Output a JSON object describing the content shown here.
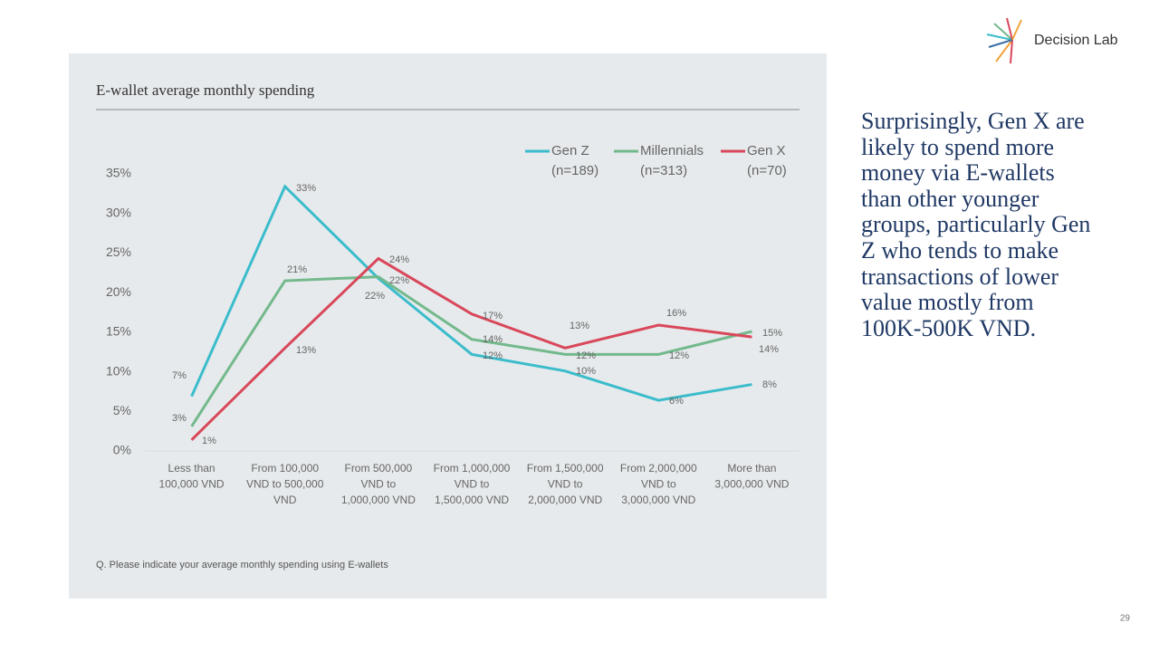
{
  "logo": "Decision Lab",
  "page_number": "29",
  "commentary": "Surprisingly, Gen X are likely to spend more money via E-wallets than other younger groups, particularly Gen Z who tends to make transactions of lower value mostly from 100K-500K VND.",
  "chart_data": {
    "type": "line",
    "title": "E-wallet average monthly spending",
    "note": "Q. Please indicate your average monthly spending using E-wallets",
    "categories": [
      [
        "Less than",
        "100,000 VND"
      ],
      [
        "From 100,000",
        "VND to 500,000",
        "VND"
      ],
      [
        "From 500,000",
        "VND to",
        "1,000,000 VND"
      ],
      [
        "From 1,000,000",
        "VND to",
        "1,500,000 VND"
      ],
      [
        "From 1,500,000",
        "VND to",
        "2,000,000 VND"
      ],
      [
        "From 2,000,000",
        "VND to",
        "3,000,000 VND"
      ],
      [
        "More than",
        "3,000,000 VND"
      ]
    ],
    "ylim": [
      0,
      35
    ],
    "yticks": [
      {
        "value": 0,
        "label": "0%"
      },
      {
        "value": 5,
        "label": "5%"
      },
      {
        "value": 10,
        "label": "10%"
      },
      {
        "value": 15,
        "label": "15%"
      },
      {
        "value": 20,
        "label": "20%"
      },
      {
        "value": 25,
        "label": "25%"
      },
      {
        "value": 30,
        "label": "30%"
      },
      {
        "value": 35,
        "label": "35%"
      }
    ],
    "legend": "top-right",
    "series": [
      {
        "name": "Gen Z",
        "n": "(n=189)",
        "color": "#3bbccb",
        "values": [
          6.9,
          33.4,
          21.8,
          12.2,
          10.1,
          6.4,
          8.4
        ],
        "value_labels": [
          "7%",
          "33%",
          "22%",
          "12%",
          "10%",
          "6%",
          "8%"
        ]
      },
      {
        "name": "Millennials",
        "n": "(n=313)",
        "color": "#73b98c",
        "values": [
          3.1,
          21.5,
          22,
          14.1,
          12.2,
          12.2,
          15.1
        ],
        "value_labels": [
          "3%",
          "21%",
          "22%",
          "14%",
          "12%",
          "12%",
          "15%"
        ]
      },
      {
        "name": "Gen X",
        "n": "(n=70)",
        "color": "#d9475a",
        "values": [
          1.4,
          13,
          24.3,
          17.3,
          13,
          15.9,
          14.4
        ],
        "value_labels": [
          "1%",
          "13%",
          "24%",
          "17%",
          "13%",
          "16%",
          "14%"
        ]
      }
    ]
  }
}
